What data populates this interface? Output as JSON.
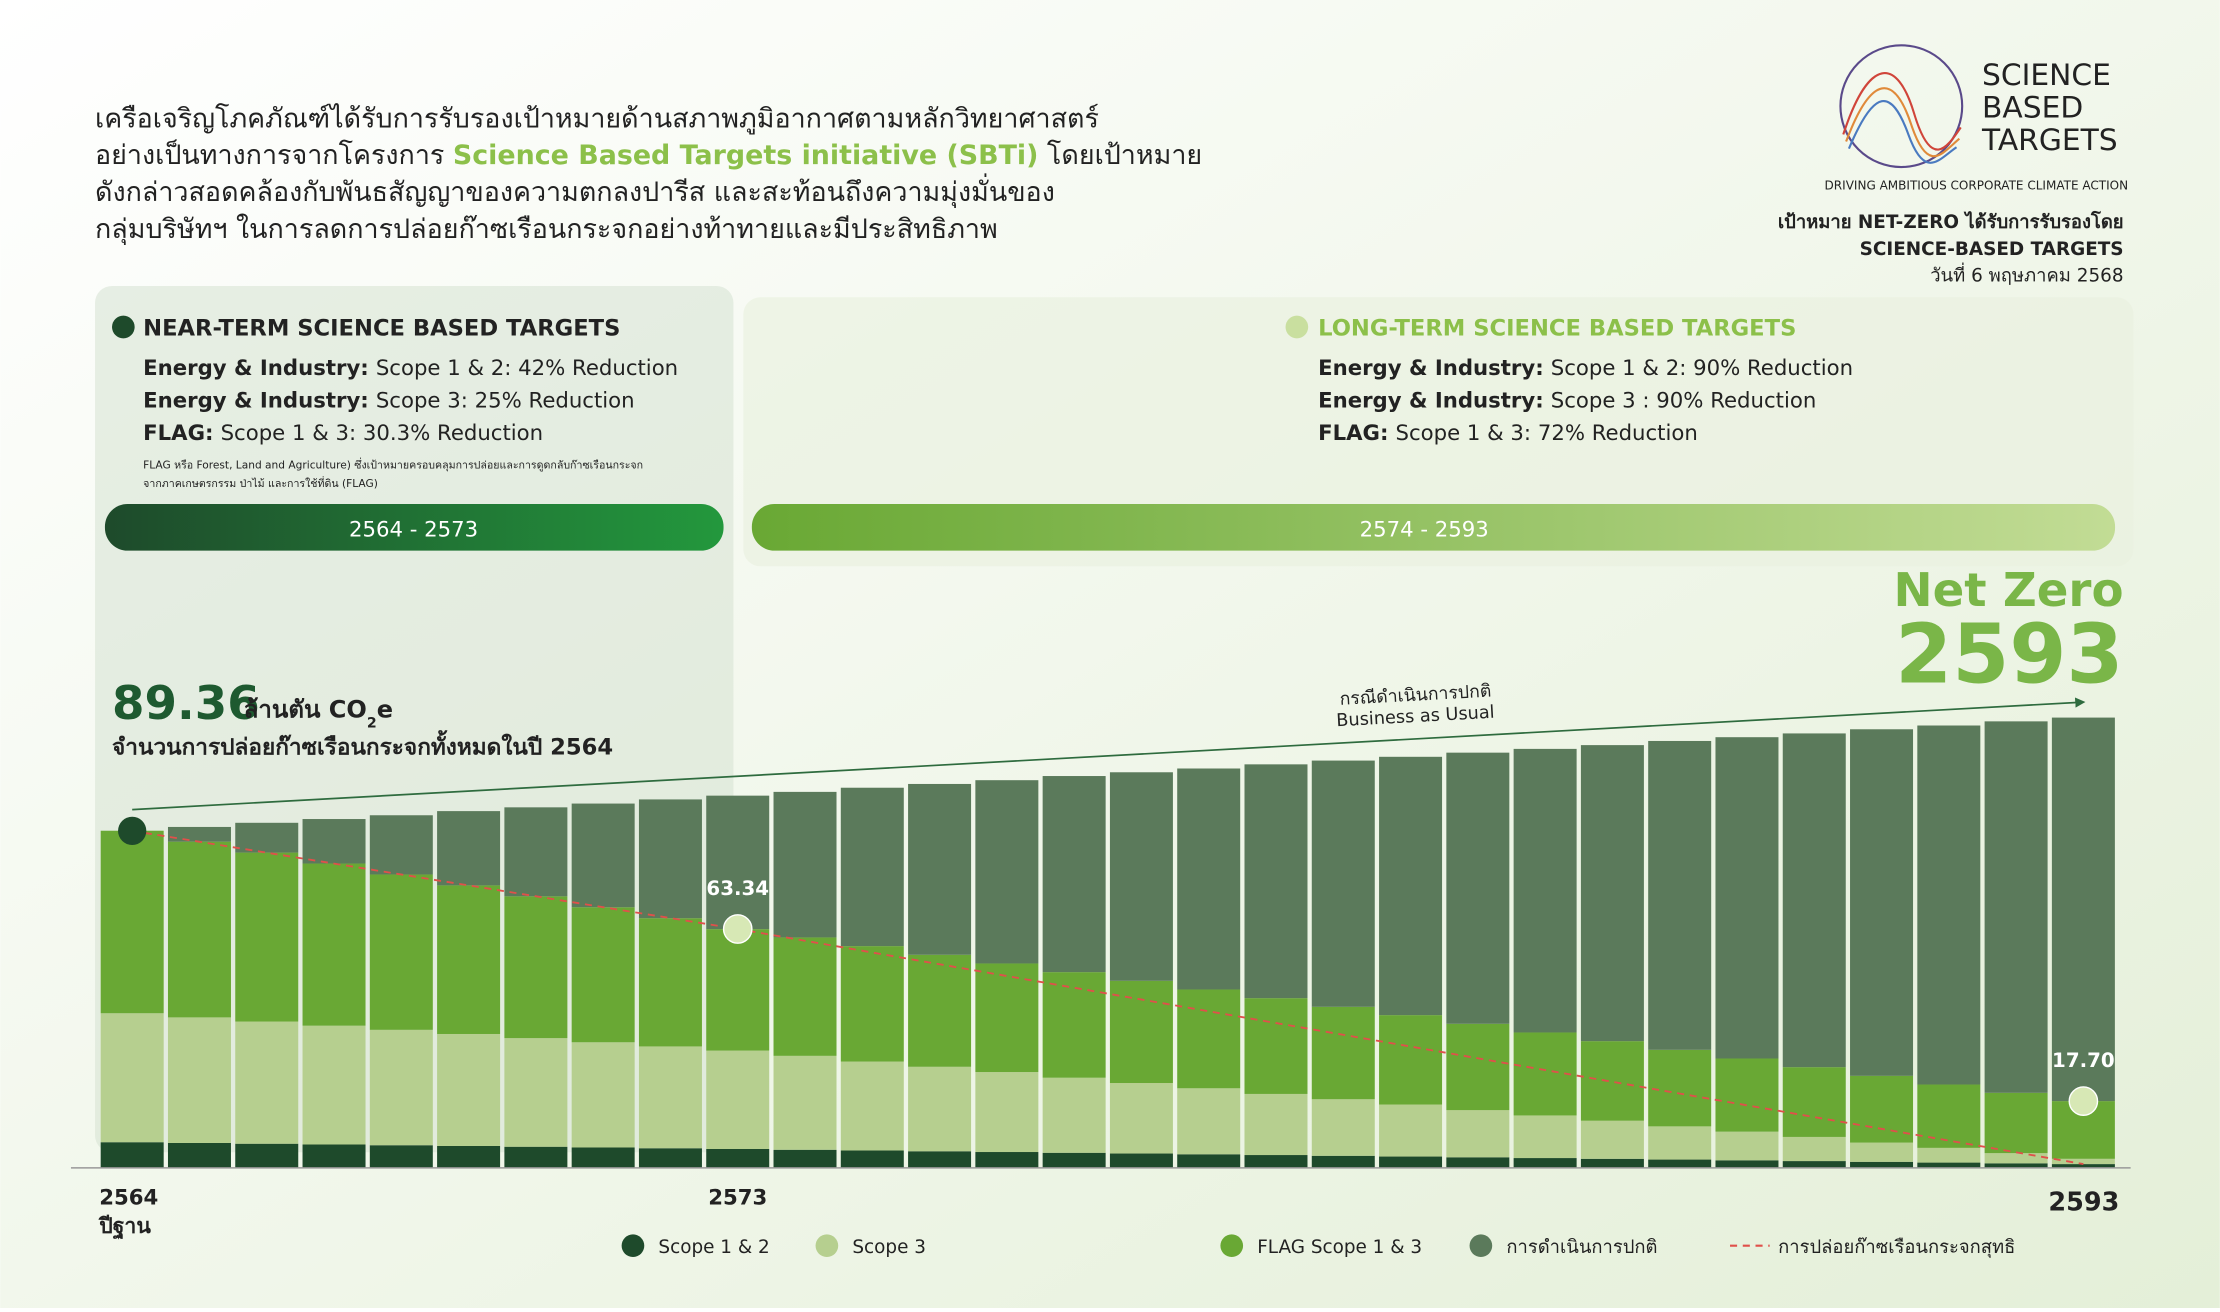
{
  "intro": {
    "lines": [
      [
        "เครือเจริญโภคภัณฑ์ได้รับการรับรองเป้าหมายด้านสภาพภูมิอากาศตามหลักวิทยาศาสตร์"
      ],
      [
        "อย่างเป็นทางการจากโครงการ",
        "Science Based Targets initiative (SBTi)",
        "โดยเป้าหมาย"
      ],
      [
        "ดังกล่าวสอดคล้องกับพันธสัญญาของความตกลงปารีส  และสะท้อนถึงความมุ่งมั่นของ"
      ],
      [
        "กลุ่มบริษัทฯ ในการลดการปล่อยก๊าซเรือนกระจกอย่างท้าทายและมีประสิทธิภาพ"
      ]
    ]
  },
  "logo": {
    "lines": [
      "SCIENCE",
      "BASED",
      "TARGETS"
    ],
    "tagline": "DRIVING AMBITIOUS CORPORATE CLIMATE ACTION"
  },
  "approval": [
    "เป้าหมาย NET-ZERO ได้รับการรับรองโดย",
    "SCIENCE-BASED TARGETS",
    "วันที่ 6 พฤษภาคม 2568"
  ],
  "near_term": {
    "title": "NEAR-TERM SCIENCE BASED TARGETS",
    "items": [
      {
        "label": "Energy & Industry:",
        "text": "Scope 1 & 2: 42% Reduction"
      },
      {
        "label": "Energy & Industry:",
        "text": "Scope 3: 25% Reduction"
      },
      {
        "label": "FLAG:",
        "text": "Scope 1 & 3: 30.3% Reduction"
      }
    ],
    "footnote": [
      "FLAG หรือ Forest, Land and Agriculture) ซึ่งเป้าหมายครอบคลุมการปล่อยและการดูดกลับก๊าซเรือนกระจก",
      "จากภาคเกษตรกรรม ป่าไม้ และการใช้ที่ดิน (FLAG)"
    ],
    "period": "2564 - 2573"
  },
  "long_term": {
    "title": "LONG-TERM SCIENCE BASED TARGETS",
    "items": [
      {
        "label": "Energy & Industry:",
        "text": "Scope 1 & 2: 90% Reduction"
      },
      {
        "label": "Energy & Industry:",
        "text": "Scope 3 : 90% Reduction"
      },
      {
        "label": "FLAG:",
        "text": "Scope 1 & 3: 72% Reduction"
      }
    ],
    "period": "2574 - 2593"
  },
  "net_zero": {
    "label": "Net Zero",
    "year": "2593"
  },
  "chart_data": {
    "type": "stacked_bar",
    "headline": {
      "value": 89.36,
      "unit": "ล้านตัน CO",
      "unit_sub": "2",
      "unit_end": "e",
      "caption": "จำนวนการปล่อยก๊าซเรือนกระจกทั้งหมดในปี 2564"
    },
    "categories": [
      "2564",
      null,
      null,
      null,
      null,
      null,
      null,
      null,
      null,
      "2573",
      null,
      null,
      null,
      null,
      null,
      null,
      null,
      null,
      null,
      null,
      null,
      null,
      null,
      null,
      null,
      null,
      null,
      null,
      null,
      "2593"
    ],
    "base_year_note": "ปีฐาน",
    "ylim": [
      0,
      125
    ],
    "series": [
      {
        "name": "Scope 1 & 2",
        "color": "#1e4a2b",
        "values": [
          6.8,
          6.6,
          6.4,
          6.2,
          6.0,
          5.8,
          5.6,
          5.4,
          5.2,
          5.0,
          4.8,
          4.6,
          4.4,
          4.2,
          4.0,
          3.8,
          3.6,
          3.4,
          3.2,
          3.0,
          2.8,
          2.6,
          2.4,
          2.2,
          2.0,
          1.8,
          1.6,
          1.4,
          1.2,
          1.0
        ]
      },
      {
        "name": "Scope 3",
        "color": "#b6cf8f",
        "values": [
          34.2,
          33.3,
          32.4,
          31.5,
          30.6,
          29.7,
          28.8,
          27.9,
          27.0,
          26.1,
          24.9,
          23.6,
          22.4,
          21.2,
          19.9,
          18.7,
          17.5,
          16.2,
          15.0,
          13.8,
          12.5,
          11.3,
          10.1,
          8.8,
          7.6,
          6.4,
          5.1,
          3.9,
          2.7,
          1.4
        ]
      },
      {
        "name": "FLAG Scope 1 & 3",
        "color": "#69a834",
        "values": [
          48.4,
          46.6,
          44.8,
          43.0,
          41.2,
          39.4,
          37.6,
          35.8,
          34.0,
          32.2,
          31.4,
          30.6,
          29.7,
          28.8,
          28.0,
          27.1,
          26.2,
          25.4,
          24.5,
          23.7,
          22.9,
          22.0,
          21.1,
          20.3,
          19.4,
          18.5,
          17.7,
          16.8,
          16.0,
          15.3
        ]
      },
      {
        "name": "การดำเนินการปกติ",
        "color": "#5b7a5b",
        "values": [
          0.0,
          3.9,
          7.9,
          11.8,
          15.7,
          19.7,
          23.6,
          27.5,
          31.5,
          35.4,
          38.6,
          42.0,
          45.3,
          48.6,
          52.0,
          55.3,
          58.6,
          62.0,
          65.3,
          68.5,
          71.9,
          75.2,
          78.5,
          81.9,
          85.2,
          88.5,
          91.9,
          95.2,
          98.5,
          101.7
        ]
      }
    ],
    "net_line": {
      "name": "การปล่อยก๊าซเรือนกระจกสุทธิ",
      "color": "#e0504a",
      "x": [
        2564,
        2573,
        2593
      ],
      "values": [
        89.36,
        63.34,
        1
      ]
    },
    "markers": {
      "x": [
        2573,
        2593
      ],
      "values": [
        63.34,
        17.7
      ],
      "value_labels": [
        "63.34",
        "17.70"
      ]
    },
    "bau_trend": {
      "label": [
        "กรณีดำเนินการปกติ",
        "Business as Usual"
      ],
      "x": [
        2564,
        2593
      ],
      "values": [
        95,
        123.5
      ]
    }
  }
}
